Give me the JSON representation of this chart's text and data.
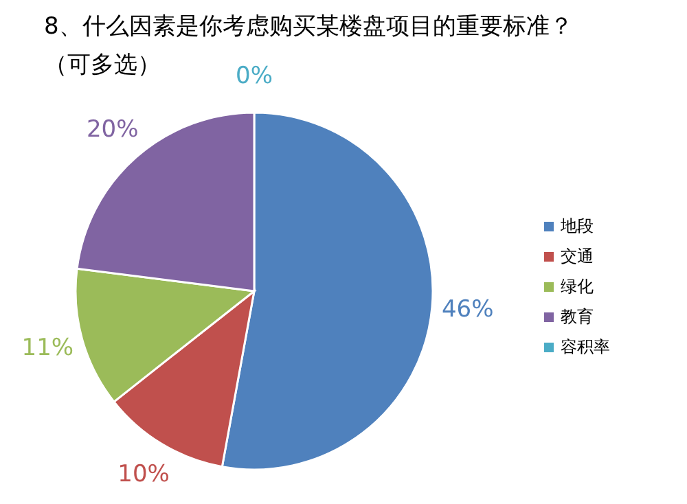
{
  "chart_data": {
    "type": "pie",
    "title": "8、什么因素是你考虑购买某楼盘项目的重要标准？",
    "subtitle": "（可多选）",
    "categories": [
      "地段",
      "交通",
      "绿化",
      "教育",
      "容积率"
    ],
    "values": [
      46,
      10,
      11,
      20,
      0
    ],
    "colors": [
      "#4f81bd",
      "#c0504d",
      "#9bbb59",
      "#8064a2",
      "#4bacc6"
    ],
    "value_labels": [
      "46%",
      "10%",
      "11%",
      "20%",
      "0%"
    ],
    "legend": "right"
  }
}
